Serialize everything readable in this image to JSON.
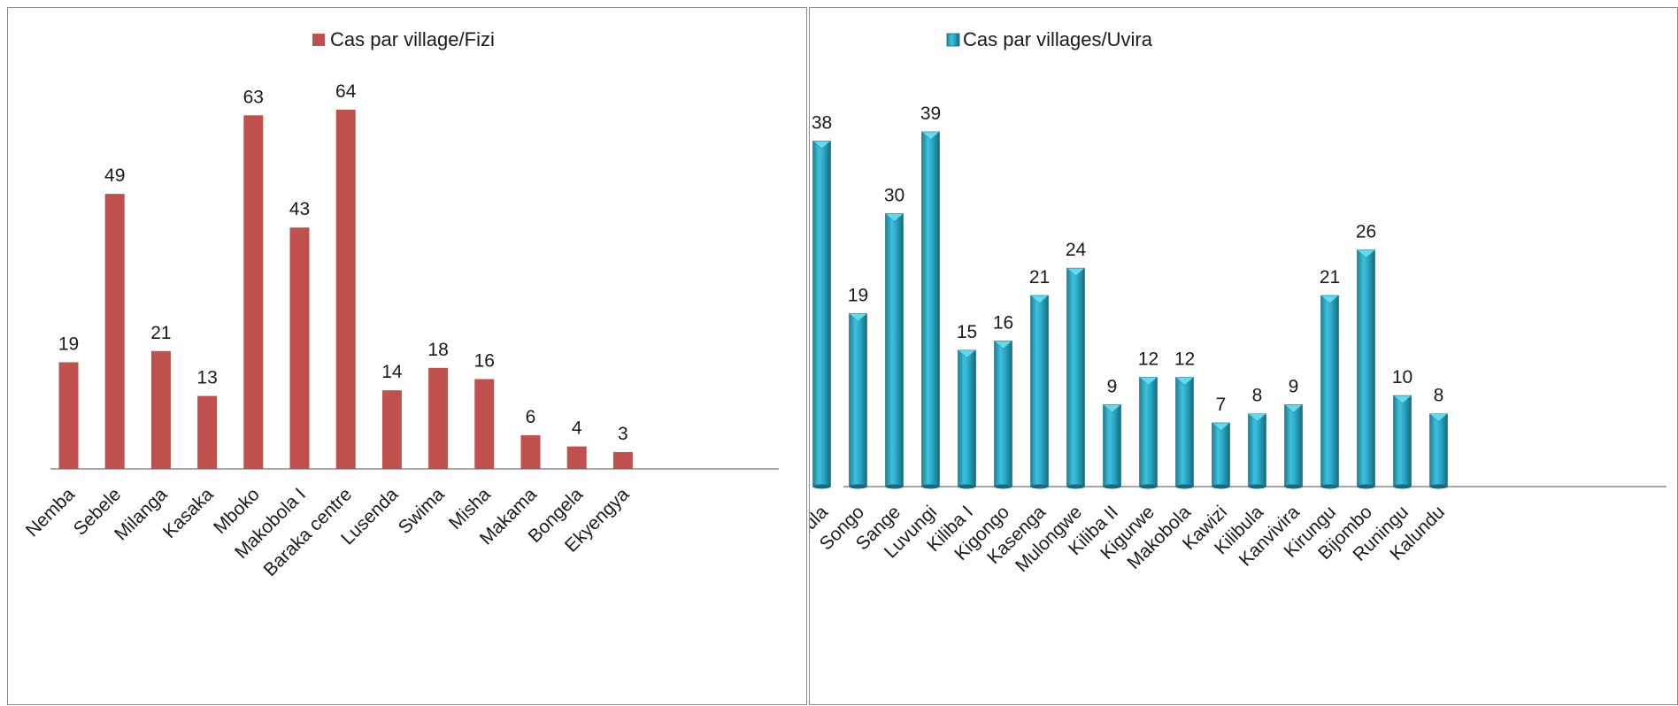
{
  "chart_data": [
    {
      "type": "bar",
      "legend": {
        "label": "Cas par village/Fizi",
        "position": "top-center",
        "color": "#C0504D"
      },
      "categories": [
        "Nemba",
        "Sebele",
        "Milanga",
        "Kasaka",
        "Mboko",
        "Makobola I",
        "Baraka centre",
        "Lusenda",
        "Swima",
        "Misha",
        "Makama",
        "Bongela",
        "Ekyengya"
      ],
      "series": [
        {
          "name": "Cas par village/Fizi",
          "values": [
            19,
            49,
            21,
            13,
            63,
            43,
            64,
            14,
            18,
            16,
            6,
            4,
            3
          ]
        }
      ],
      "ylim": [
        0,
        64
      ],
      "grid": false,
      "data_labels": true
    },
    {
      "type": "bar",
      "style": "3d-cylinder",
      "legend": {
        "label": "Cas par villages/Uvira",
        "position": "top-center",
        "color": "#2DB3CF"
      },
      "categories": [
        "Kabindula",
        "Songo",
        "Sange",
        "Luvungi",
        "Kiliba I",
        "Kigongo",
        "Kasenga",
        "Mulongwe",
        "Kiliba II",
        "Kigurwe",
        "Makobola",
        "Kawizi",
        "Kilibula",
        "Kanvivira",
        "Kirungu",
        "Bijombo",
        "Runingu",
        "Kalundu"
      ],
      "series": [
        {
          "name": "Cas par villages/Uvira",
          "values": [
            38,
            19,
            30,
            39,
            15,
            16,
            21,
            24,
            9,
            12,
            12,
            7,
            8,
            9,
            21,
            26,
            10,
            8
          ]
        }
      ],
      "ylim": [
        0,
        39
      ],
      "grid": false,
      "data_labels": true
    }
  ]
}
